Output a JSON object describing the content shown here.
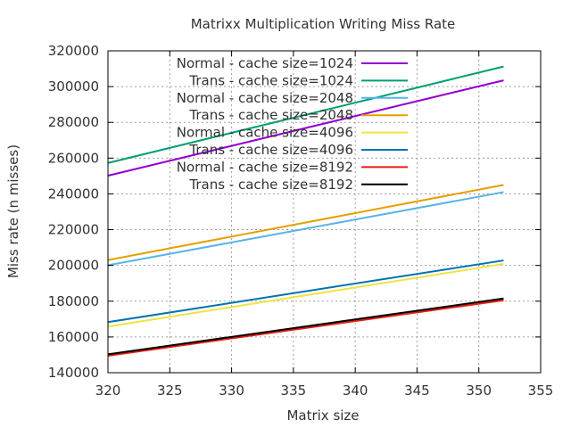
{
  "chart_data": {
    "type": "line",
    "title": "Matrixx Multiplication Writing Miss Rate",
    "xlabel": "Matrix size",
    "ylabel": "Miss rate (n misses)",
    "xlim": [
      320,
      355
    ],
    "ylim": [
      140000,
      320000
    ],
    "xticks": [
      320,
      325,
      330,
      335,
      340,
      345,
      350,
      355
    ],
    "yticks": [
      140000,
      160000,
      180000,
      200000,
      220000,
      240000,
      260000,
      280000,
      300000,
      320000
    ],
    "xtick_labels": [
      "320",
      "325",
      "330",
      "335",
      "340",
      "345",
      "350",
      "355"
    ],
    "ytick_labels": [
      "140000",
      "160000",
      "180000",
      "200000",
      "220000",
      "240000",
      "260000",
      "280000",
      "300000",
      "320000"
    ],
    "grid": true,
    "legend_position": "top-left",
    "series": [
      {
        "name": "Normal - cache size=1024",
        "color": "#9400d3",
        "x": [
          320,
          352
        ],
        "y": [
          250200,
          303500
        ]
      },
      {
        "name": "Trans - cache size=1024",
        "color": "#009e73",
        "x": [
          320,
          352
        ],
        "y": [
          257300,
          311200
        ]
      },
      {
        "name": "Normal - cache size=2048",
        "color": "#56b4e9",
        "x": [
          320,
          352
        ],
        "y": [
          200100,
          241000
        ]
      },
      {
        "name": "Trans - cache size=2048",
        "color": "#e69f00",
        "x": [
          320,
          352
        ],
        "y": [
          203000,
          245000
        ]
      },
      {
        "name": "Normal - cache size=4096",
        "color": "#f0e442",
        "x": [
          320,
          352
        ],
        "y": [
          165800,
          200800
        ]
      },
      {
        "name": "Trans - cache size=4096",
        "color": "#0072b2",
        "x": [
          320,
          352
        ],
        "y": [
          168300,
          202800
        ]
      },
      {
        "name": "Normal - cache size=8192",
        "color": "#e51e10",
        "x": [
          320,
          352
        ],
        "y": [
          149500,
          180500
        ]
      },
      {
        "name": "Trans - cache size=8192",
        "color": "#000000",
        "x": [
          320,
          352
        ],
        "y": [
          150300,
          181500
        ]
      }
    ]
  }
}
